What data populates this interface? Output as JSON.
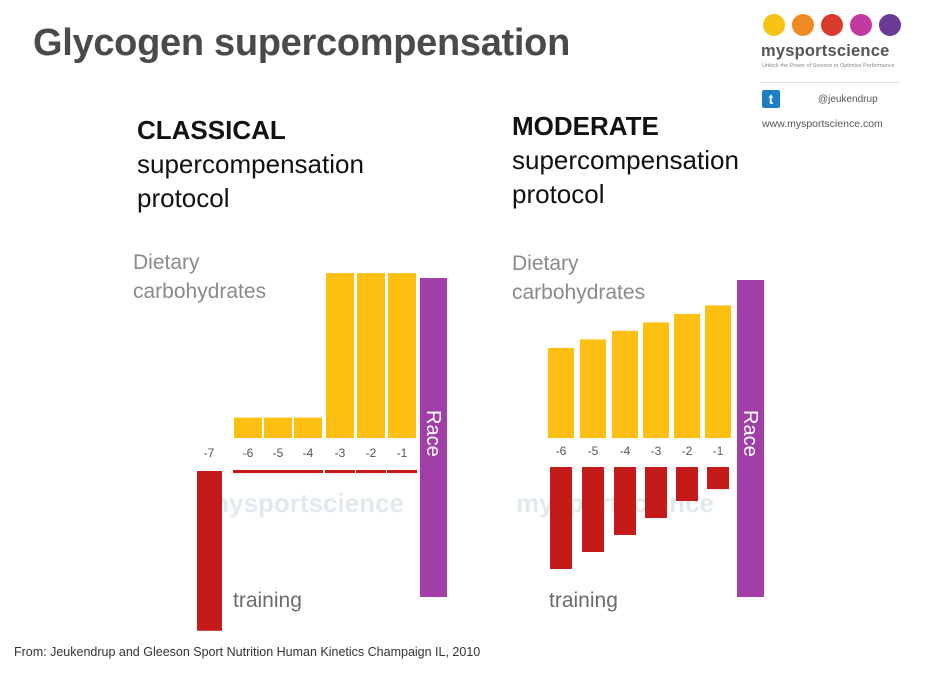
{
  "title": "Glycogen supercompensation",
  "logo": {
    "name": "mysportscience",
    "tagline": "Unlock the Power of Science to Optimize Performance",
    "twitter_handle": "@jeukendrup",
    "url": "www.mysportscience.com",
    "dot_colors": [
      "#f6c315",
      "#f08a24",
      "#d93a2b",
      "#c13aa0",
      "#6b3a96"
    ]
  },
  "watermark": "mysportscience",
  "colors": {
    "carbohydrate": "#fdbf10",
    "training": "#c41a1a",
    "race": "#a23ea8"
  },
  "source": "From: Jeukendrup and Gleeson Sport Nutrition Human Kinetics Champaign IL, 2010",
  "chart_data": [
    {
      "type": "bar",
      "title_lines": [
        "CLASSICAL",
        "supercompensation",
        "protocol"
      ],
      "top_label_lines": [
        "Dietary",
        "carbohydrates"
      ],
      "bottom_label": "training",
      "race_label": "Race",
      "categories": [
        "-7",
        "-6",
        "-5",
        "-4",
        "-3",
        "-2",
        "-1"
      ],
      "series": [
        {
          "name": "Dietary carbohydrates",
          "values": [
            0,
            1.2,
            1.2,
            1.2,
            9.7,
            9.7,
            9.7
          ]
        },
        {
          "name": "training",
          "values": [
            0,
            0.3,
            0.3,
            0.3,
            0.3,
            0.3,
            0.3
          ]
        }
      ],
      "training_day_minus7": 9.4
    },
    {
      "type": "bar",
      "title_lines": [
        "MODERATE",
        "supercompensation",
        "protocol"
      ],
      "top_label_lines": [
        "Dietary",
        "carbohydrates"
      ],
      "bottom_label": "training",
      "race_label": "Race",
      "categories": [
        "-6",
        "-5",
        "-4",
        "-3",
        "-2",
        "-1"
      ],
      "series": [
        {
          "name": "Dietary carbohydrates",
          "values": [
            5.3,
            5.8,
            6.3,
            6.8,
            7.3,
            7.8
          ]
        },
        {
          "name": "training",
          "values": [
            6.0,
            5.0,
            4.0,
            3.0,
            2.0,
            1.3
          ]
        }
      ]
    }
  ]
}
